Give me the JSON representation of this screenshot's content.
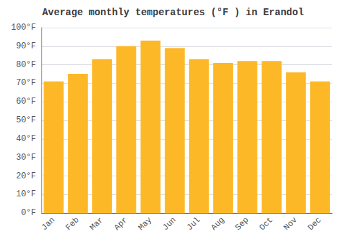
{
  "chart_data": {
    "type": "bar",
    "title": "Average monthly temperatures (°F ) in Erandol",
    "categories": [
      "Jan",
      "Feb",
      "Mar",
      "Apr",
      "May",
      "Jun",
      "Jul",
      "Aug",
      "Sep",
      "Oct",
      "Nov",
      "Dec"
    ],
    "values": [
      71,
      75,
      83,
      90,
      93,
      89,
      83,
      81,
      82,
      82,
      76,
      71
    ],
    "color": "#FDB827",
    "ylim": [
      0,
      100
    ],
    "yticks": [
      {
        "value": 0,
        "label": "0°F"
      },
      {
        "value": 10,
        "label": "10°F"
      },
      {
        "value": 20,
        "label": "20°F"
      },
      {
        "value": 30,
        "label": "30°F"
      },
      {
        "value": 40,
        "label": "40°F"
      },
      {
        "value": 50,
        "label": "50°F"
      },
      {
        "value": 60,
        "label": "60°F"
      },
      {
        "value": 70,
        "label": "70°F"
      },
      {
        "value": 80,
        "label": "80°F"
      },
      {
        "value": 90,
        "label": "90°F"
      },
      {
        "value": 100,
        "label": "100°F"
      }
    ],
    "grid": true
  }
}
